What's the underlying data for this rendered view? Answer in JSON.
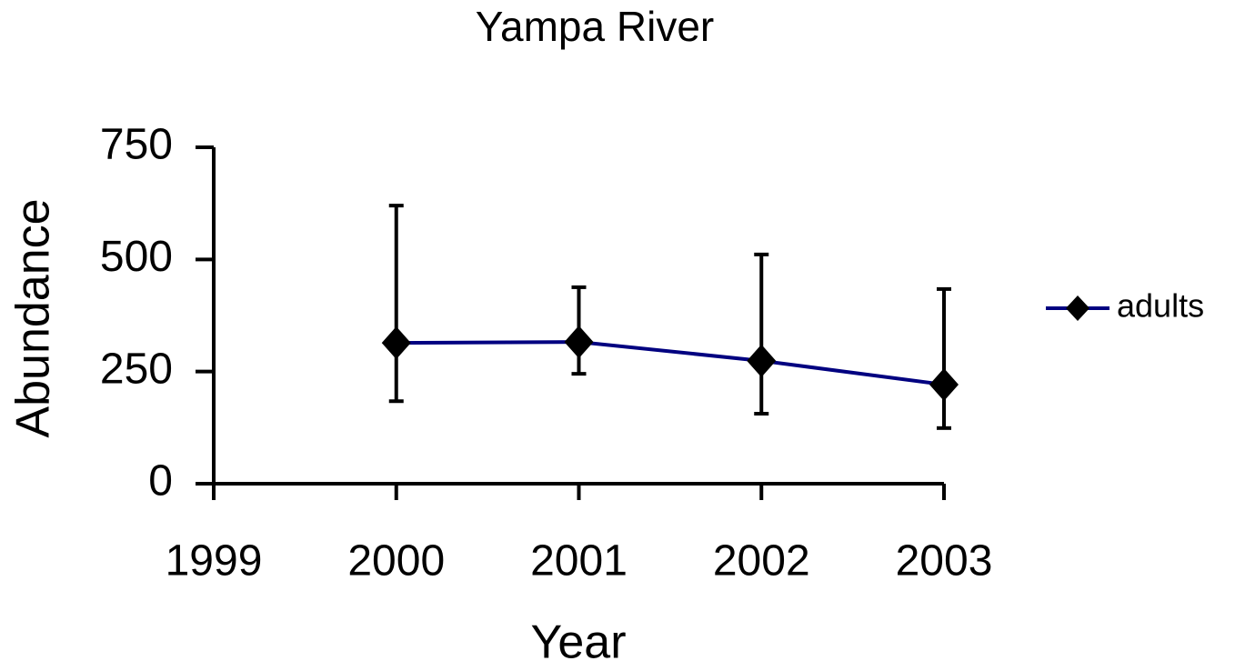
{
  "chart_data": {
    "type": "line",
    "title": "Yampa River",
    "x_label": "Year",
    "y_label": "Abundance",
    "x": [
      2000,
      2001,
      2002,
      2003
    ],
    "series": [
      {
        "name": "adults",
        "color": "#000080",
        "marker_color": "#000000",
        "values": [
          314,
          316,
          274,
          221
        ],
        "err_plus": [
          306,
          122,
          237,
          213
        ],
        "err_minus": [
          130,
          71,
          118,
          97
        ]
      }
    ],
    "xlim": [
      1999,
      2003
    ],
    "xticks": [
      1999,
      2000,
      2001,
      2002,
      2003
    ],
    "ylim": [
      0,
      750
    ],
    "yticks": [
      0,
      250,
      500,
      750
    ],
    "grid": false,
    "legend": "right"
  }
}
